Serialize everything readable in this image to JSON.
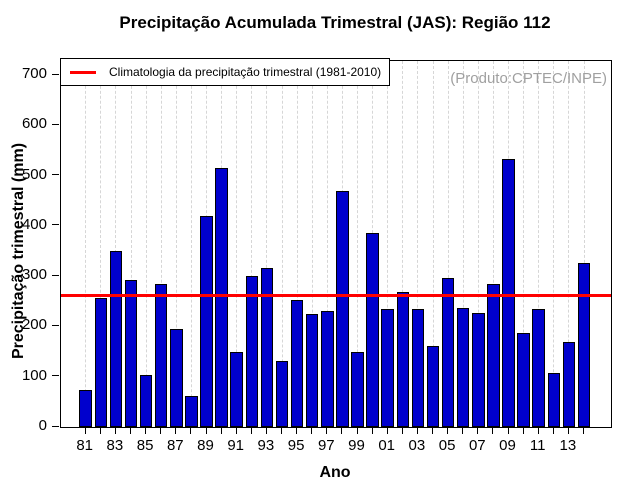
{
  "title": "Precipitação Acumulada Trimestral (JAS): Região 112",
  "annotation": {
    "text": "(Produto:CPTEC/INPE)",
    "color": "#A0A0A0"
  },
  "legend": {
    "label": "Climatologia da precipitação trimestral (1981-2010)",
    "line_color": "#FF0000"
  },
  "axes": {
    "x_title": "Ano",
    "y_title": "Precipitação trimestral (mm)"
  },
  "chart_data": {
    "type": "bar",
    "title": "Precipitação Acumulada Trimestral (JAS): Região 112",
    "xlabel": "Ano",
    "ylabel": "Precipitação trimestral (mm)",
    "years": [
      1981,
      1982,
      1983,
      1984,
      1985,
      1986,
      1987,
      1988,
      1989,
      1990,
      1991,
      1992,
      1993,
      1994,
      1995,
      1996,
      1997,
      1998,
      1999,
      2000,
      2001,
      2002,
      2003,
      2004,
      2005,
      2006,
      2007,
      2008,
      2009,
      2010,
      2011,
      2012,
      2013,
      2014
    ],
    "values": [
      73,
      257,
      350,
      293,
      104,
      285,
      195,
      62,
      419,
      516,
      150,
      301,
      317,
      131,
      252,
      225,
      231,
      470,
      150,
      385,
      235,
      268,
      235,
      162,
      296,
      236,
      227,
      284,
      534,
      186,
      235,
      108,
      170,
      327
    ],
    "xtick_labels": [
      "81",
      "83",
      "85",
      "87",
      "89",
      "91",
      "93",
      "95",
      "97",
      "99",
      "01",
      "03",
      "05",
      "07",
      "09",
      "11",
      "13"
    ],
    "yticks": [
      0,
      100,
      200,
      300,
      400,
      500,
      600,
      700
    ],
    "ylim": [
      0,
      728
    ],
    "climatology_value": 262,
    "legend_position": "top-left",
    "grid": "vertical-dashed-per-bar",
    "colors": {
      "bar_fill": "#0000CD",
      "bar_border": "#000000",
      "climatology": "#FF0000",
      "gridline": "#D6D6D6",
      "annotation_text": "#A0A0A0"
    }
  }
}
